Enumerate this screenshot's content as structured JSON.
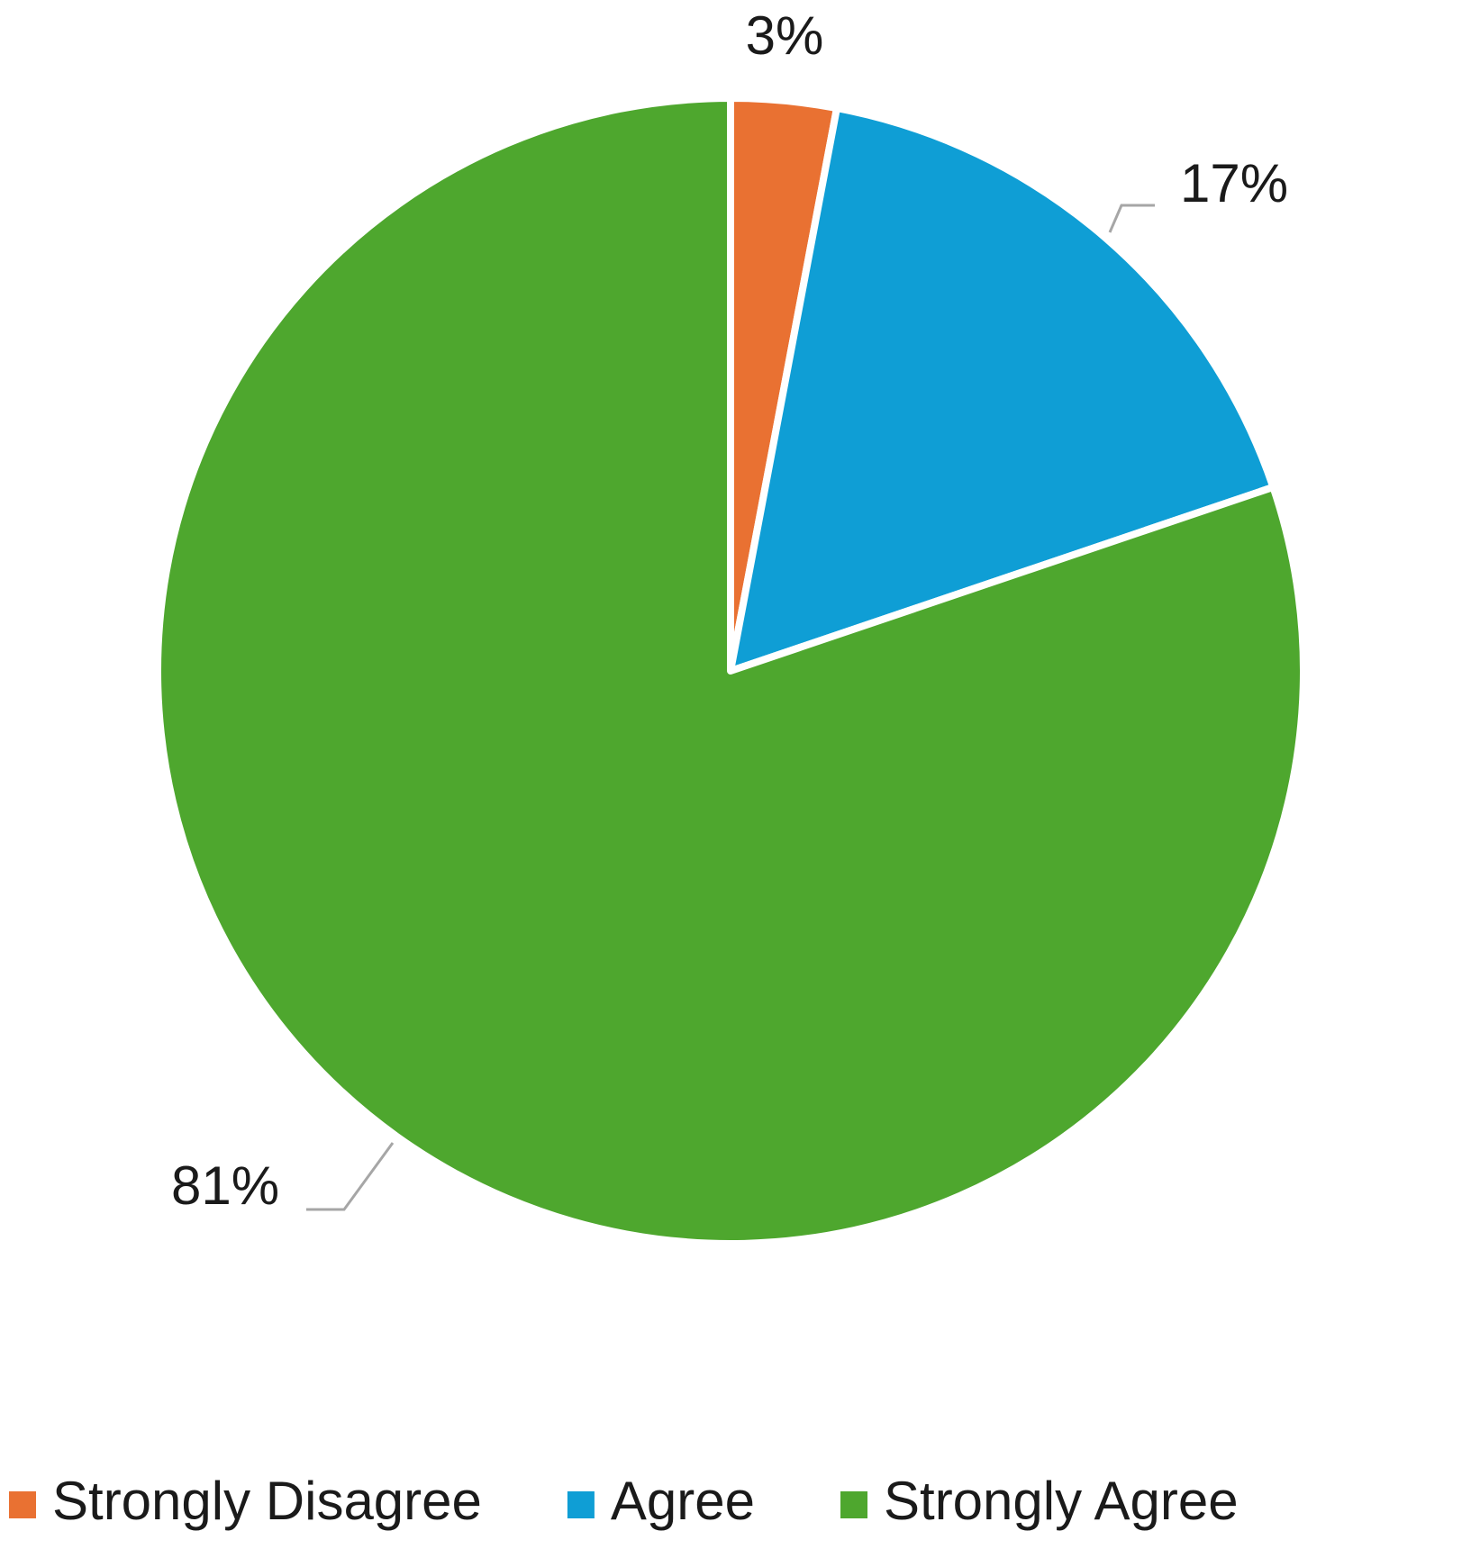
{
  "chart_data": {
    "type": "pie",
    "categories": [
      "Strongly Disagree",
      "Agree",
      "Strongly Agree"
    ],
    "values": [
      3,
      17,
      81
    ],
    "value_labels": [
      "3%",
      "17%",
      "81%"
    ],
    "colors": [
      "#E97132",
      "#0F9ED5",
      "#4EA72E"
    ],
    "legend": "bottom"
  }
}
